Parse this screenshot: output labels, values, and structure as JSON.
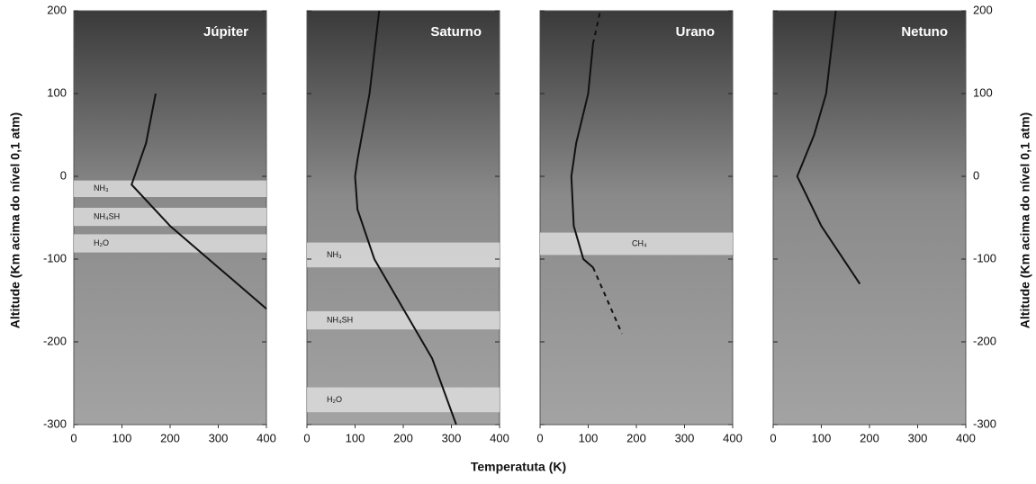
{
  "chart_data": {
    "type": "line",
    "x_label": "Temperatuta (K)",
    "y_label": "Altitude (Km acima do nível 0,1 atm)",
    "xlim": [
      0,
      400
    ],
    "xticks": [
      0,
      100,
      200,
      300,
      400
    ],
    "ylim": [
      -300,
      200
    ],
    "yticks": [
      -300,
      -200,
      -100,
      0,
      100,
      200
    ],
    "color": "#111111",
    "panels": [
      {
        "title": "Júpiter",
        "x": [
          170,
          150,
          120,
          200,
          300,
          400
        ],
        "y": [
          100,
          40,
          -10,
          -60,
          -110,
          -160
        ],
        "dashed": [],
        "clouds": [
          {
            "label": "NH₃",
            "top": -5,
            "bottom": -25
          },
          {
            "label": "NH₄SH",
            "top": -38,
            "bottom": -60
          },
          {
            "label": "H₂O",
            "top": -70,
            "bottom": -92
          }
        ]
      },
      {
        "title": "Saturno",
        "x": [
          150,
          130,
          105,
          100,
          105,
          140,
          200,
          260,
          310
        ],
        "y": [
          200,
          100,
          20,
          0,
          -40,
          -100,
          -160,
          -220,
          -300
        ],
        "dashed": [],
        "clouds": [
          {
            "label": "NH₃",
            "top": -80,
            "bottom": -110
          },
          {
            "label": "NH₄SH",
            "top": -163,
            "bottom": -185
          },
          {
            "label": "H₂O",
            "top": -255,
            "bottom": -285
          }
        ]
      },
      {
        "title": "Urano",
        "x": [
          110,
          100,
          75,
          65,
          70,
          90,
          110
        ],
        "y": [
          160,
          100,
          40,
          0,
          -60,
          -100,
          -110
        ],
        "dashed": [
          {
            "x": [
              110,
              125
            ],
            "y": [
              160,
              200
            ]
          },
          {
            "x": [
              110,
              170
            ],
            "y": [
              -110,
              -190
            ]
          }
        ],
        "clouds": [
          {
            "label": "CH₄",
            "top": -68,
            "bottom": -95
          }
        ]
      },
      {
        "title": "Netuno",
        "x": [
          130,
          110,
          85,
          50,
          100,
          180
        ],
        "y": [
          200,
          100,
          50,
          0,
          -60,
          -130
        ],
        "dashed": [],
        "clouds": []
      }
    ]
  }
}
